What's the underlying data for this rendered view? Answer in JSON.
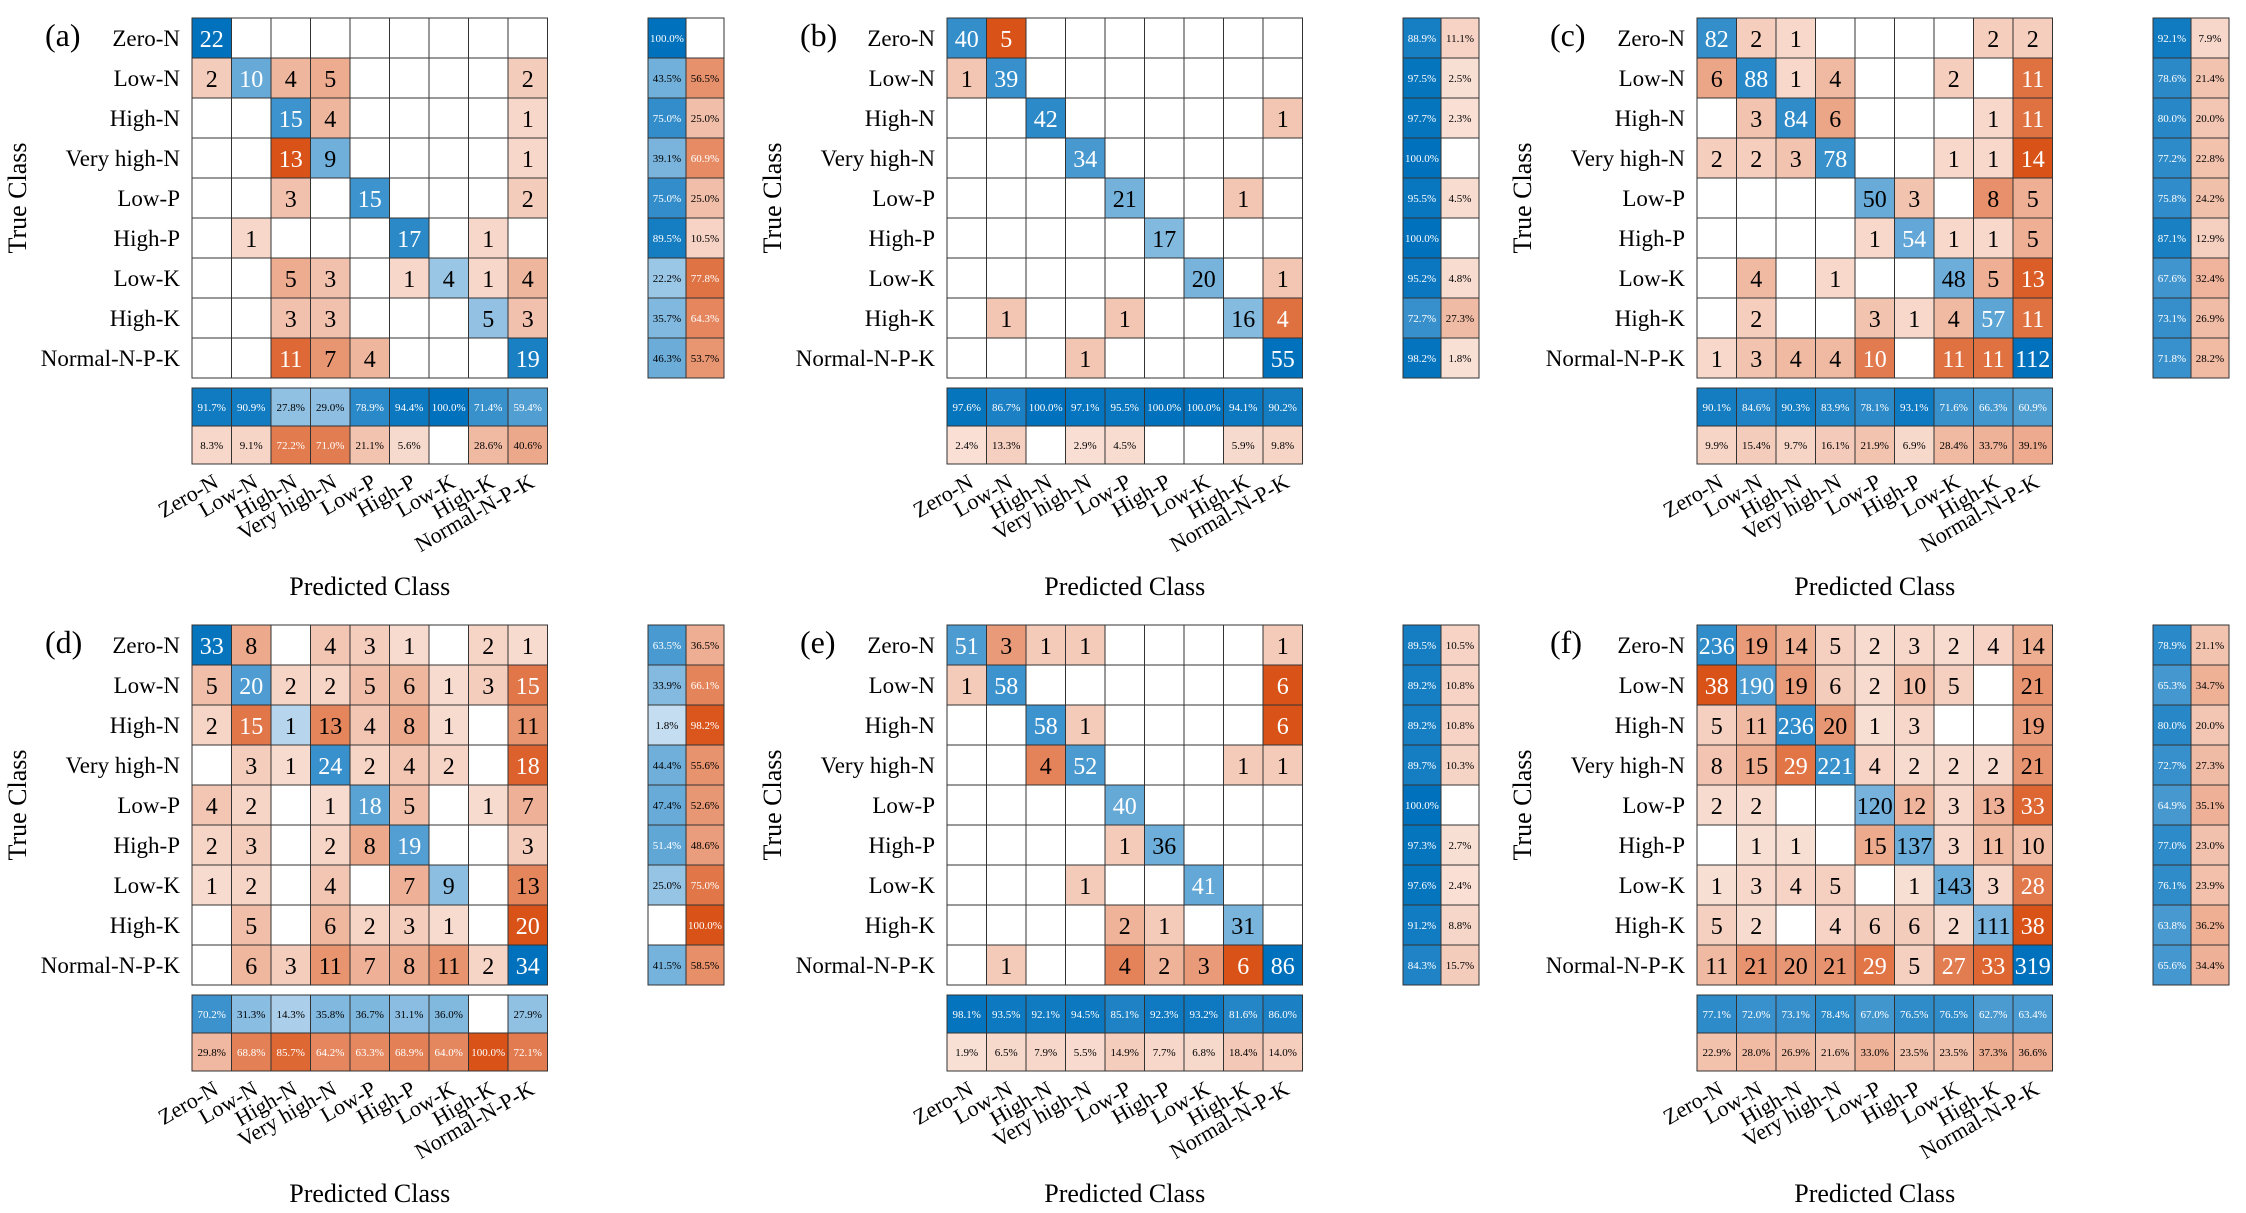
{
  "class_labels": [
    "Zero-N",
    "Low-N",
    "High-N",
    "Very high-N",
    "Low-P",
    "High-P",
    "Low-K",
    "High-K",
    "Normal-N-P-K"
  ],
  "ylabel": "True Class",
  "xlabel": "Predicted Class",
  "colors": {
    "blue_high": "#0072bd",
    "blue_low": "#deebf7",
    "red_high": "#d95319",
    "red_low": "#fbeae3",
    "grid": "#333333"
  },
  "chart_data": [
    {
      "type": "heatmap",
      "panel_label": "(a)",
      "matrix": [
        [
          22,
          null,
          null,
          null,
          null,
          null,
          null,
          null,
          null
        ],
        [
          2,
          10,
          4,
          5,
          null,
          null,
          null,
          null,
          2
        ],
        [
          null,
          null,
          15,
          4,
          null,
          null,
          null,
          null,
          1
        ],
        [
          null,
          null,
          13,
          9,
          null,
          null,
          null,
          null,
          1
        ],
        [
          null,
          null,
          3,
          null,
          15,
          null,
          null,
          null,
          2
        ],
        [
          null,
          1,
          null,
          null,
          null,
          17,
          null,
          1,
          null
        ],
        [
          null,
          null,
          5,
          3,
          null,
          1,
          4,
          1,
          4
        ],
        [
          null,
          null,
          3,
          3,
          null,
          null,
          null,
          5,
          3
        ],
        [
          null,
          null,
          11,
          7,
          4,
          null,
          null,
          null,
          19
        ]
      ],
      "row_correct": [
        "100.0%",
        "43.5%",
        "75.0%",
        "39.1%",
        "75.0%",
        "89.5%",
        "22.2%",
        "35.7%",
        "46.3%"
      ],
      "row_incorrect": [
        "",
        "56.5%",
        "25.0%",
        "60.9%",
        "25.0%",
        "10.5%",
        "77.8%",
        "64.3%",
        "53.7%"
      ],
      "col_correct": [
        "91.7%",
        "90.9%",
        "27.8%",
        "29.0%",
        "78.9%",
        "94.4%",
        "100.0%",
        "71.4%",
        "59.4%"
      ],
      "col_incorrect": [
        "8.3%",
        "9.1%",
        "72.2%",
        "71.0%",
        "21.1%",
        "5.6%",
        "",
        "28.6%",
        "40.6%"
      ]
    },
    {
      "type": "heatmap",
      "panel_label": "(b)",
      "matrix": [
        [
          40,
          5,
          null,
          null,
          null,
          null,
          null,
          null,
          null
        ],
        [
          1,
          39,
          null,
          null,
          null,
          null,
          null,
          null,
          null
        ],
        [
          null,
          null,
          42,
          null,
          null,
          null,
          null,
          null,
          1
        ],
        [
          null,
          null,
          null,
          34,
          null,
          null,
          null,
          null,
          null
        ],
        [
          null,
          null,
          null,
          null,
          21,
          null,
          null,
          1,
          null
        ],
        [
          null,
          null,
          null,
          null,
          null,
          17,
          null,
          null,
          null
        ],
        [
          null,
          null,
          null,
          null,
          null,
          null,
          20,
          null,
          1
        ],
        [
          null,
          1,
          null,
          null,
          1,
          null,
          null,
          16,
          4
        ],
        [
          null,
          null,
          null,
          1,
          null,
          null,
          null,
          null,
          55
        ]
      ],
      "row_correct": [
        "88.9%",
        "97.5%",
        "97.7%",
        "100.0%",
        "95.5%",
        "100.0%",
        "95.2%",
        "72.7%",
        "98.2%"
      ],
      "row_incorrect": [
        "11.1%",
        "2.5%",
        "2.3%",
        "",
        "4.5%",
        "",
        "4.8%",
        "27.3%",
        "1.8%"
      ],
      "col_correct": [
        "97.6%",
        "86.7%",
        "100.0%",
        "97.1%",
        "95.5%",
        "100.0%",
        "100.0%",
        "94.1%",
        "90.2%"
      ],
      "col_incorrect": [
        "2.4%",
        "13.3%",
        "",
        "2.9%",
        "4.5%",
        "",
        "",
        "5.9%",
        "9.8%"
      ]
    },
    {
      "type": "heatmap",
      "panel_label": "(c)",
      "matrix": [
        [
          82,
          2,
          1,
          null,
          null,
          null,
          null,
          2,
          2
        ],
        [
          6,
          88,
          1,
          4,
          null,
          null,
          2,
          null,
          11
        ],
        [
          null,
          3,
          84,
          6,
          null,
          null,
          null,
          1,
          11
        ],
        [
          2,
          2,
          3,
          78,
          null,
          null,
          1,
          1,
          14
        ],
        [
          null,
          null,
          null,
          null,
          50,
          3,
          null,
          8,
          5
        ],
        [
          null,
          null,
          null,
          null,
          1,
          54,
          1,
          1,
          5
        ],
        [
          null,
          4,
          null,
          1,
          null,
          null,
          48,
          5,
          13
        ],
        [
          null,
          2,
          null,
          null,
          3,
          1,
          4,
          57,
          11
        ],
        [
          1,
          3,
          4,
          4,
          10,
          null,
          11,
          11,
          112
        ]
      ],
      "row_correct": [
        "92.1%",
        "78.6%",
        "80.0%",
        "77.2%",
        "75.8%",
        "87.1%",
        "67.6%",
        "73.1%",
        "71.8%"
      ],
      "row_incorrect": [
        "7.9%",
        "21.4%",
        "20.0%",
        "22.8%",
        "24.2%",
        "12.9%",
        "32.4%",
        "26.9%",
        "28.2%"
      ],
      "col_correct": [
        "90.1%",
        "84.6%",
        "90.3%",
        "83.9%",
        "78.1%",
        "93.1%",
        "71.6%",
        "66.3%",
        "60.9%"
      ],
      "col_incorrect": [
        "9.9%",
        "15.4%",
        "9.7%",
        "16.1%",
        "21.9%",
        "6.9%",
        "28.4%",
        "33.7%",
        "39.1%"
      ]
    },
    {
      "type": "heatmap",
      "panel_label": "(d)",
      "matrix": [
        [
          33,
          8,
          null,
          4,
          3,
          1,
          null,
          2,
          1
        ],
        [
          5,
          20,
          2,
          2,
          5,
          6,
          1,
          3,
          15
        ],
        [
          2,
          15,
          1,
          13,
          4,
          8,
          1,
          null,
          11
        ],
        [
          null,
          3,
          1,
          24,
          2,
          4,
          2,
          null,
          18
        ],
        [
          4,
          2,
          null,
          1,
          18,
          5,
          null,
          1,
          7
        ],
        [
          2,
          3,
          null,
          2,
          8,
          19,
          null,
          null,
          3
        ],
        [
          1,
          2,
          null,
          4,
          null,
          7,
          9,
          null,
          13
        ],
        [
          null,
          5,
          null,
          6,
          2,
          3,
          1,
          null,
          20
        ],
        [
          null,
          6,
          3,
          11,
          7,
          8,
          11,
          2,
          34
        ]
      ],
      "row_correct": [
        "63.5%",
        "33.9%",
        "1.8%",
        "44.4%",
        "47.4%",
        "51.4%",
        "25.0%",
        "",
        "41.5%"
      ],
      "row_incorrect": [
        "36.5%",
        "66.1%",
        "98.2%",
        "55.6%",
        "52.6%",
        "48.6%",
        "75.0%",
        "100.0%",
        "58.5%"
      ],
      "col_correct": [
        "70.2%",
        "31.3%",
        "14.3%",
        "35.8%",
        "36.7%",
        "31.1%",
        "36.0%",
        "",
        "27.9%"
      ],
      "col_incorrect": [
        "29.8%",
        "68.8%",
        "85.7%",
        "64.2%",
        "63.3%",
        "68.9%",
        "64.0%",
        "100.0%",
        "72.1%"
      ]
    },
    {
      "type": "heatmap",
      "panel_label": "(e)",
      "matrix": [
        [
          51,
          3,
          1,
          1,
          null,
          null,
          null,
          null,
          1
        ],
        [
          1,
          58,
          null,
          null,
          null,
          null,
          null,
          null,
          6
        ],
        [
          null,
          null,
          58,
          1,
          null,
          null,
          null,
          null,
          6
        ],
        [
          null,
          null,
          4,
          52,
          null,
          null,
          null,
          1,
          1
        ],
        [
          null,
          null,
          null,
          null,
          40,
          null,
          null,
          null,
          null
        ],
        [
          null,
          null,
          null,
          null,
          1,
          36,
          null,
          null,
          null
        ],
        [
          null,
          null,
          null,
          1,
          null,
          null,
          41,
          null,
          null
        ],
        [
          null,
          null,
          null,
          null,
          2,
          1,
          null,
          31,
          null
        ],
        [
          null,
          1,
          null,
          null,
          4,
          2,
          3,
          6,
          86
        ]
      ],
      "row_correct": [
        "89.5%",
        "89.2%",
        "89.2%",
        "89.7%",
        "100.0%",
        "97.3%",
        "97.6%",
        "91.2%",
        "84.3%"
      ],
      "row_incorrect": [
        "10.5%",
        "10.8%",
        "10.8%",
        "10.3%",
        "",
        "2.7%",
        "2.4%",
        "8.8%",
        "15.7%"
      ],
      "col_correct": [
        "98.1%",
        "93.5%",
        "92.1%",
        "94.5%",
        "85.1%",
        "92.3%",
        "93.2%",
        "81.6%",
        "86.0%"
      ],
      "col_incorrect": [
        "1.9%",
        "6.5%",
        "7.9%",
        "5.5%",
        "14.9%",
        "7.7%",
        "6.8%",
        "18.4%",
        "14.0%"
      ]
    },
    {
      "type": "heatmap",
      "panel_label": "(f)",
      "matrix": [
        [
          236,
          19,
          14,
          5,
          2,
          3,
          2,
          4,
          14
        ],
        [
          38,
          190,
          19,
          6,
          2,
          10,
          5,
          null,
          21
        ],
        [
          5,
          11,
          236,
          20,
          1,
          3,
          null,
          null,
          19
        ],
        [
          8,
          15,
          29,
          221,
          4,
          2,
          2,
          2,
          21
        ],
        [
          2,
          2,
          null,
          null,
          120,
          12,
          3,
          13,
          33
        ],
        [
          null,
          1,
          1,
          null,
          15,
          137,
          3,
          11,
          10
        ],
        [
          1,
          3,
          4,
          5,
          null,
          1,
          143,
          3,
          28
        ],
        [
          5,
          2,
          null,
          4,
          6,
          6,
          2,
          111,
          38
        ],
        [
          11,
          21,
          20,
          21,
          29,
          5,
          27,
          33,
          319
        ]
      ],
      "row_correct": [
        "78.9%",
        "65.3%",
        "80.0%",
        "72.7%",
        "64.9%",
        "77.0%",
        "76.1%",
        "63.8%",
        "65.6%"
      ],
      "row_incorrect": [
        "21.1%",
        "34.7%",
        "20.0%",
        "27.3%",
        "35.1%",
        "23.0%",
        "23.9%",
        "36.2%",
        "34.4%"
      ],
      "col_correct": [
        "77.1%",
        "72.0%",
        "73.1%",
        "78.4%",
        "67.0%",
        "76.5%",
        "76.5%",
        "62.7%",
        "63.4%"
      ],
      "col_incorrect": [
        "22.9%",
        "28.0%",
        "26.9%",
        "21.6%",
        "33.0%",
        "23.5%",
        "23.5%",
        "37.3%",
        "36.6%"
      ]
    }
  ]
}
